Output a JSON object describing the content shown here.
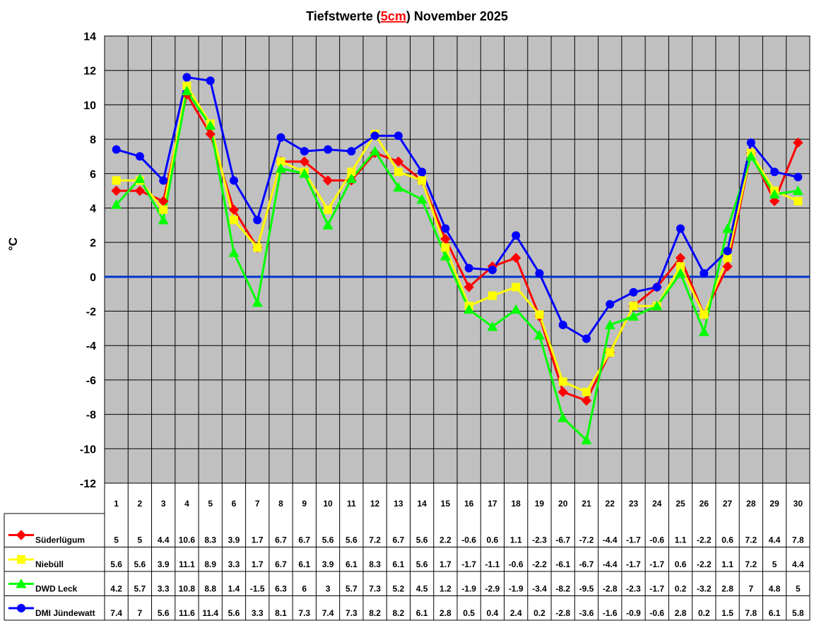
{
  "chart_data": {
    "type": "line",
    "title_prefix": "Tiefstwerte (",
    "title_highlight": "5cm",
    "title_suffix": ") November 2025",
    "ylabel": "°C",
    "xlabel": "",
    "ylim": [
      -12,
      14
    ],
    "ytick_step": 2,
    "grid": true,
    "legend": "data-table-below",
    "reference_line": 0,
    "categories": [
      "1",
      "2",
      "3",
      "4",
      "5",
      "6",
      "7",
      "8",
      "9",
      "10",
      "11",
      "12",
      "13",
      "14",
      "15",
      "16",
      "17",
      "18",
      "19",
      "20",
      "21",
      "22",
      "23",
      "24",
      "25",
      "26",
      "27",
      "28",
      "29",
      "30"
    ],
    "series": [
      {
        "name": "Süderlügum",
        "color": "#ff0000",
        "marker": "diamond",
        "values": [
          5,
          5,
          4.4,
          10.6,
          8.3,
          3.9,
          1.7,
          6.7,
          6.7,
          5.6,
          5.6,
          7.2,
          6.7,
          5.6,
          2.2,
          -0.6,
          0.6,
          1.1,
          -2.3,
          -6.7,
          -7.2,
          -4.4,
          -1.7,
          -0.6,
          1.1,
          -2.2,
          0.6,
          7.2,
          4.4,
          7.8
        ]
      },
      {
        "name": "Niebüll",
        "color": "#ffff00",
        "marker": "square",
        "values": [
          5.6,
          5.6,
          3.9,
          11.1,
          8.9,
          3.3,
          1.7,
          6.7,
          6.1,
          3.9,
          6.1,
          8.3,
          6.1,
          5.6,
          1.7,
          -1.7,
          -1.1,
          -0.6,
          -2.2,
          -6.1,
          -6.7,
          -4.4,
          -1.7,
          -1.7,
          0.6,
          -2.2,
          1.1,
          7.2,
          5,
          4.4
        ]
      },
      {
        "name": "DWD Leck",
        "color": "#00ff00",
        "marker": "triangle",
        "values": [
          4.2,
          5.7,
          3.3,
          10.8,
          8.8,
          1.4,
          -1.5,
          6.3,
          6,
          3,
          5.7,
          7.3,
          5.2,
          4.5,
          1.2,
          -1.9,
          -2.9,
          -1.9,
          -3.4,
          -8.2,
          -9.5,
          -2.8,
          -2.3,
          -1.7,
          0.2,
          -3.2,
          2.8,
          7,
          4.8,
          5
        ]
      },
      {
        "name": "DMI Jündewatt",
        "color": "#0000ff",
        "marker": "circle",
        "values": [
          7.4,
          7,
          5.6,
          11.6,
          11.4,
          5.6,
          3.3,
          8.1,
          7.3,
          7.4,
          7.3,
          8.2,
          8.2,
          6.1,
          2.8,
          0.5,
          0.4,
          2.4,
          0.2,
          -2.8,
          -3.6,
          -1.6,
          -0.9,
          -0.6,
          2.8,
          0.2,
          1.5,
          7.8,
          6.1,
          5.8
        ]
      }
    ]
  },
  "colors": {
    "plot_background": "#c0c0c0",
    "zero_line": "#0033cc"
  }
}
